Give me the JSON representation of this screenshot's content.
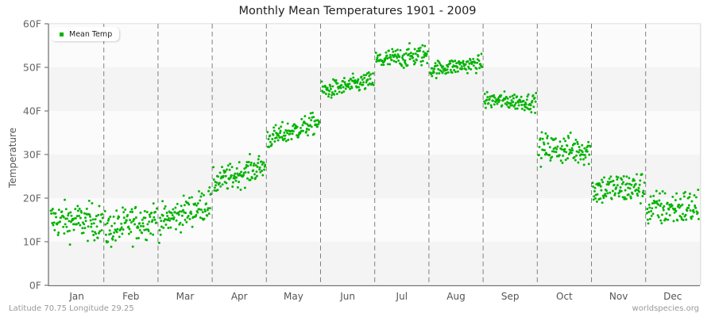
{
  "title": "Monthly Mean Temperatures 1901 - 2009",
  "legend": {
    "label": "Mean Temp",
    "color": "#00b300"
  },
  "y_axis": {
    "label": "Temperature",
    "ticks": [
      "0F",
      "10F",
      "20F",
      "30F",
      "40F",
      "50F",
      "60F"
    ]
  },
  "x_axis": {
    "ticks": [
      "Jan",
      "Feb",
      "Mar",
      "Apr",
      "May",
      "Jun",
      "Jul",
      "Aug",
      "Sep",
      "Oct",
      "Nov",
      "Dec"
    ]
  },
  "footer": {
    "location": "Latitude 70.75 Longitude 29.25",
    "credit": "worldspecies.org"
  },
  "colors": {
    "point": "#00b300",
    "band_light": "#fbfbfb",
    "band_dark": "#f4f4f4",
    "divider": "#808080",
    "axis": "#777777"
  },
  "chart_data": {
    "type": "scatter",
    "title": "Monthly Mean Temperatures 1901 - 2009",
    "xlabel": "",
    "ylabel": "Temperature",
    "ylim": [
      0,
      60
    ],
    "y_unit": "F",
    "grid": "alternating horizontal bands, dashed vertical month dividers",
    "legend": {
      "entries": [
        "Mean Temp"
      ],
      "position": "top-left"
    },
    "categories": [
      "Jan",
      "Feb",
      "Mar",
      "Apr",
      "May",
      "Jun",
      "Jul",
      "Aug",
      "Sep",
      "Oct",
      "Nov",
      "Dec"
    ],
    "points_per_month": 109,
    "years": [
      1901,
      2009
    ],
    "series": [
      {
        "name": "Mean Temp",
        "monthly_start_mean": [
          15.0,
          12.5,
          14.5,
          23.5,
          33.5,
          44.5,
          51.5,
          49.5,
          42.5,
          31.5,
          22.0,
          17.5
        ],
        "monthly_end_mean": [
          14.5,
          15.5,
          19.0,
          27.5,
          37.5,
          47.0,
          53.0,
          51.0,
          42.0,
          31.0,
          22.5,
          18.0
        ],
        "monthly_mean": [
          13.5,
          12.5,
          15.5,
          25.0,
          35.5,
          45.5,
          52.5,
          50.0,
          41.5,
          31.0,
          22.5,
          16.5
        ],
        "monthly_spread": [
          3.4,
          3.4,
          3.0,
          2.4,
          2.0,
          1.7,
          2.0,
          1.5,
          1.6,
          2.8,
          3.0,
          3.4
        ],
        "monthly_min": [
          3.0,
          3.0,
          8.0,
          17.0,
          29.0,
          41.0,
          47.0,
          45.0,
          37.0,
          24.0,
          15.0,
          5.0
        ],
        "monthly_max": [
          20.5,
          20.5,
          22.5,
          31.5,
          40.0,
          49.5,
          59.5,
          56.0,
          46.0,
          38.5,
          29.0,
          23.5
        ]
      }
    ]
  }
}
